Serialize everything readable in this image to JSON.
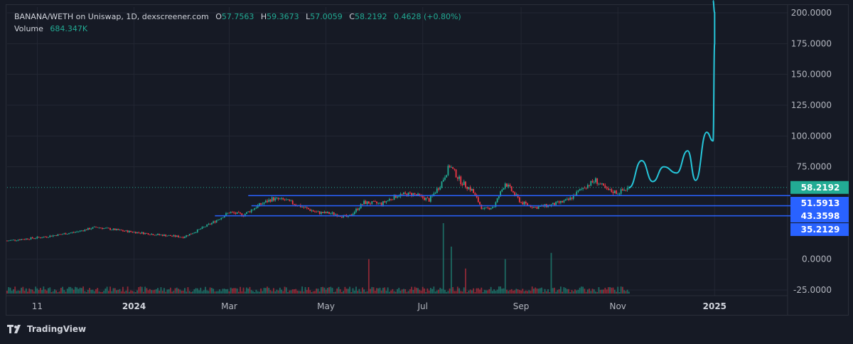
{
  "header": {
    "symbol": "BANANA/WETH on Uniswap, 1D, dexscreener.com",
    "o_label": "O",
    "o_value": "57.7563",
    "h_label": "H",
    "h_value": "59.3673",
    "l_label": "L",
    "l_value": "57.0059",
    "c_label": "C",
    "c_value": "58.2192",
    "change": "0.4628 (+0.80%)",
    "volume_label": "Volume",
    "volume_value": "684.347K"
  },
  "footer": {
    "brand": "TradingView"
  },
  "colors": {
    "background": "#161A25",
    "grid": "#232733",
    "up": "#22AB94",
    "down": "#F23645",
    "level_line": "#2962FF",
    "projection": "#26C6DA",
    "last_price_badge": "#22AB94",
    "level_badge": "#2962FF"
  },
  "chart_data": {
    "type": "candlestick",
    "y_ticks": [
      "200.0000",
      "175.0000",
      "150.0000",
      "125.0000",
      "100.0000",
      "75.0000",
      "0.0000",
      "-25.0000"
    ],
    "ylim": [
      -25,
      200
    ],
    "x_ticks": [
      {
        "label": "11",
        "date": "2023-11-01"
      },
      {
        "label": "2024",
        "date": "2024-01-01",
        "bold": true
      },
      {
        "label": "Mar",
        "date": "2024-03-01"
      },
      {
        "label": "May",
        "date": "2024-05-01"
      },
      {
        "label": "Jul",
        "date": "2024-07-01"
      },
      {
        "label": "Sep",
        "date": "2024-09-01"
      },
      {
        "label": "Nov",
        "date": "2024-11-01"
      },
      {
        "label": "2025",
        "date": "2025-01-01",
        "bold": true
      }
    ],
    "xlim": [
      "2023-10-13",
      "2025-02-16"
    ],
    "last_price": {
      "value": 58.2192,
      "label": "58.2192"
    },
    "levels": [
      {
        "value": 51.5913,
        "label": "51.5913",
        "from": "2024-03-13"
      },
      {
        "value": 43.3598,
        "label": "43.3598",
        "from": "2024-03-15"
      },
      {
        "value": 35.2129,
        "label": "35.2129",
        "from": "2024-02-21"
      }
    ],
    "price_path": [
      [
        "2023-10-13",
        15
      ],
      [
        "2023-11-05",
        18
      ],
      [
        "2023-11-25",
        22
      ],
      [
        "2023-12-08",
        26
      ],
      [
        "2023-12-25",
        23
      ],
      [
        "2024-01-15",
        20
      ],
      [
        "2024-02-01",
        18
      ],
      [
        "2024-02-08",
        22
      ],
      [
        "2024-02-20",
        30
      ],
      [
        "2024-03-01",
        38
      ],
      [
        "2024-03-10",
        36
      ],
      [
        "2024-03-20",
        44
      ],
      [
        "2024-03-28",
        49
      ],
      [
        "2024-04-05",
        48
      ],
      [
        "2024-04-15",
        43
      ],
      [
        "2024-04-25",
        38
      ],
      [
        "2024-05-05",
        37
      ],
      [
        "2024-05-15",
        34
      ],
      [
        "2024-05-25",
        46
      ],
      [
        "2024-06-05",
        45
      ],
      [
        "2024-06-15",
        52
      ],
      [
        "2024-06-25",
        53
      ],
      [
        "2024-07-05",
        48
      ],
      [
        "2024-07-12",
        60
      ],
      [
        "2024-07-18",
        76
      ],
      [
        "2024-07-25",
        63
      ],
      [
        "2024-08-01",
        56
      ],
      [
        "2024-08-08",
        40
      ],
      [
        "2024-08-15",
        43
      ],
      [
        "2024-08-22",
        62
      ],
      [
        "2024-09-01",
        46
      ],
      [
        "2024-09-10",
        42
      ],
      [
        "2024-09-20",
        44
      ],
      [
        "2024-10-01",
        48
      ],
      [
        "2024-10-10",
        58
      ],
      [
        "2024-10-18",
        64
      ],
      [
        "2024-10-25",
        56
      ],
      [
        "2024-11-01",
        54
      ],
      [
        "2024-11-08",
        58
      ]
    ],
    "volume_spikes": [
      {
        "date": "2024-07-14",
        "height": 4.5
      },
      {
        "date": "2024-07-19",
        "height": 3.0
      },
      {
        "date": "2024-05-28",
        "height": 2.2
      },
      {
        "date": "2024-08-22",
        "height": 2.2
      },
      {
        "date": "2024-09-20",
        "height": 2.6
      },
      {
        "date": "2024-07-28",
        "height": 1.6
      }
    ],
    "projection": [
      [
        "2024-11-08",
        58
      ],
      [
        "2024-11-16",
        80
      ],
      [
        "2024-11-23",
        63
      ],
      [
        "2024-11-30",
        75
      ],
      [
        "2024-12-08",
        70
      ],
      [
        "2024-12-15",
        88
      ],
      [
        "2024-12-20",
        64
      ],
      [
        "2024-12-27",
        103
      ],
      [
        "2024-12-31",
        96
      ],
      [
        "2025-01-01",
        175
      ],
      [
        "2025-01-01",
        200
      ],
      [
        "2024-12-31",
        210
      ]
    ]
  }
}
